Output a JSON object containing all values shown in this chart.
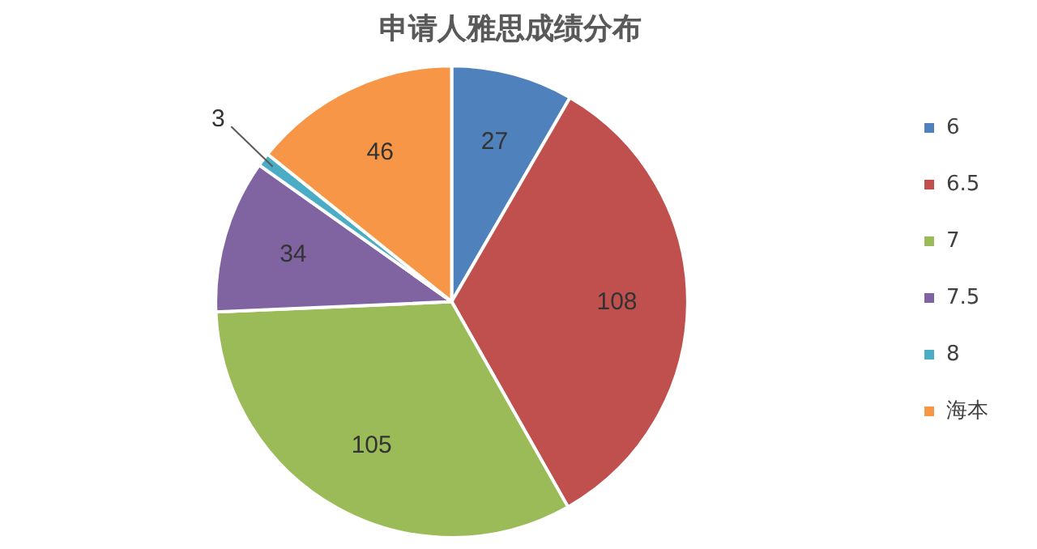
{
  "chart_data": {
    "type": "pie",
    "title": "申请人雅思成绩分布",
    "categories": [
      "6",
      "6.5",
      "7",
      "7.5",
      "8",
      "海本"
    ],
    "values": [
      27,
      108,
      105,
      34,
      3,
      46
    ],
    "colors": [
      "#4f81bd",
      "#c0504d",
      "#9bbb59",
      "#8064a2",
      "#4bacc6",
      "#f79646"
    ],
    "data_labels": true,
    "legend": "right"
  }
}
